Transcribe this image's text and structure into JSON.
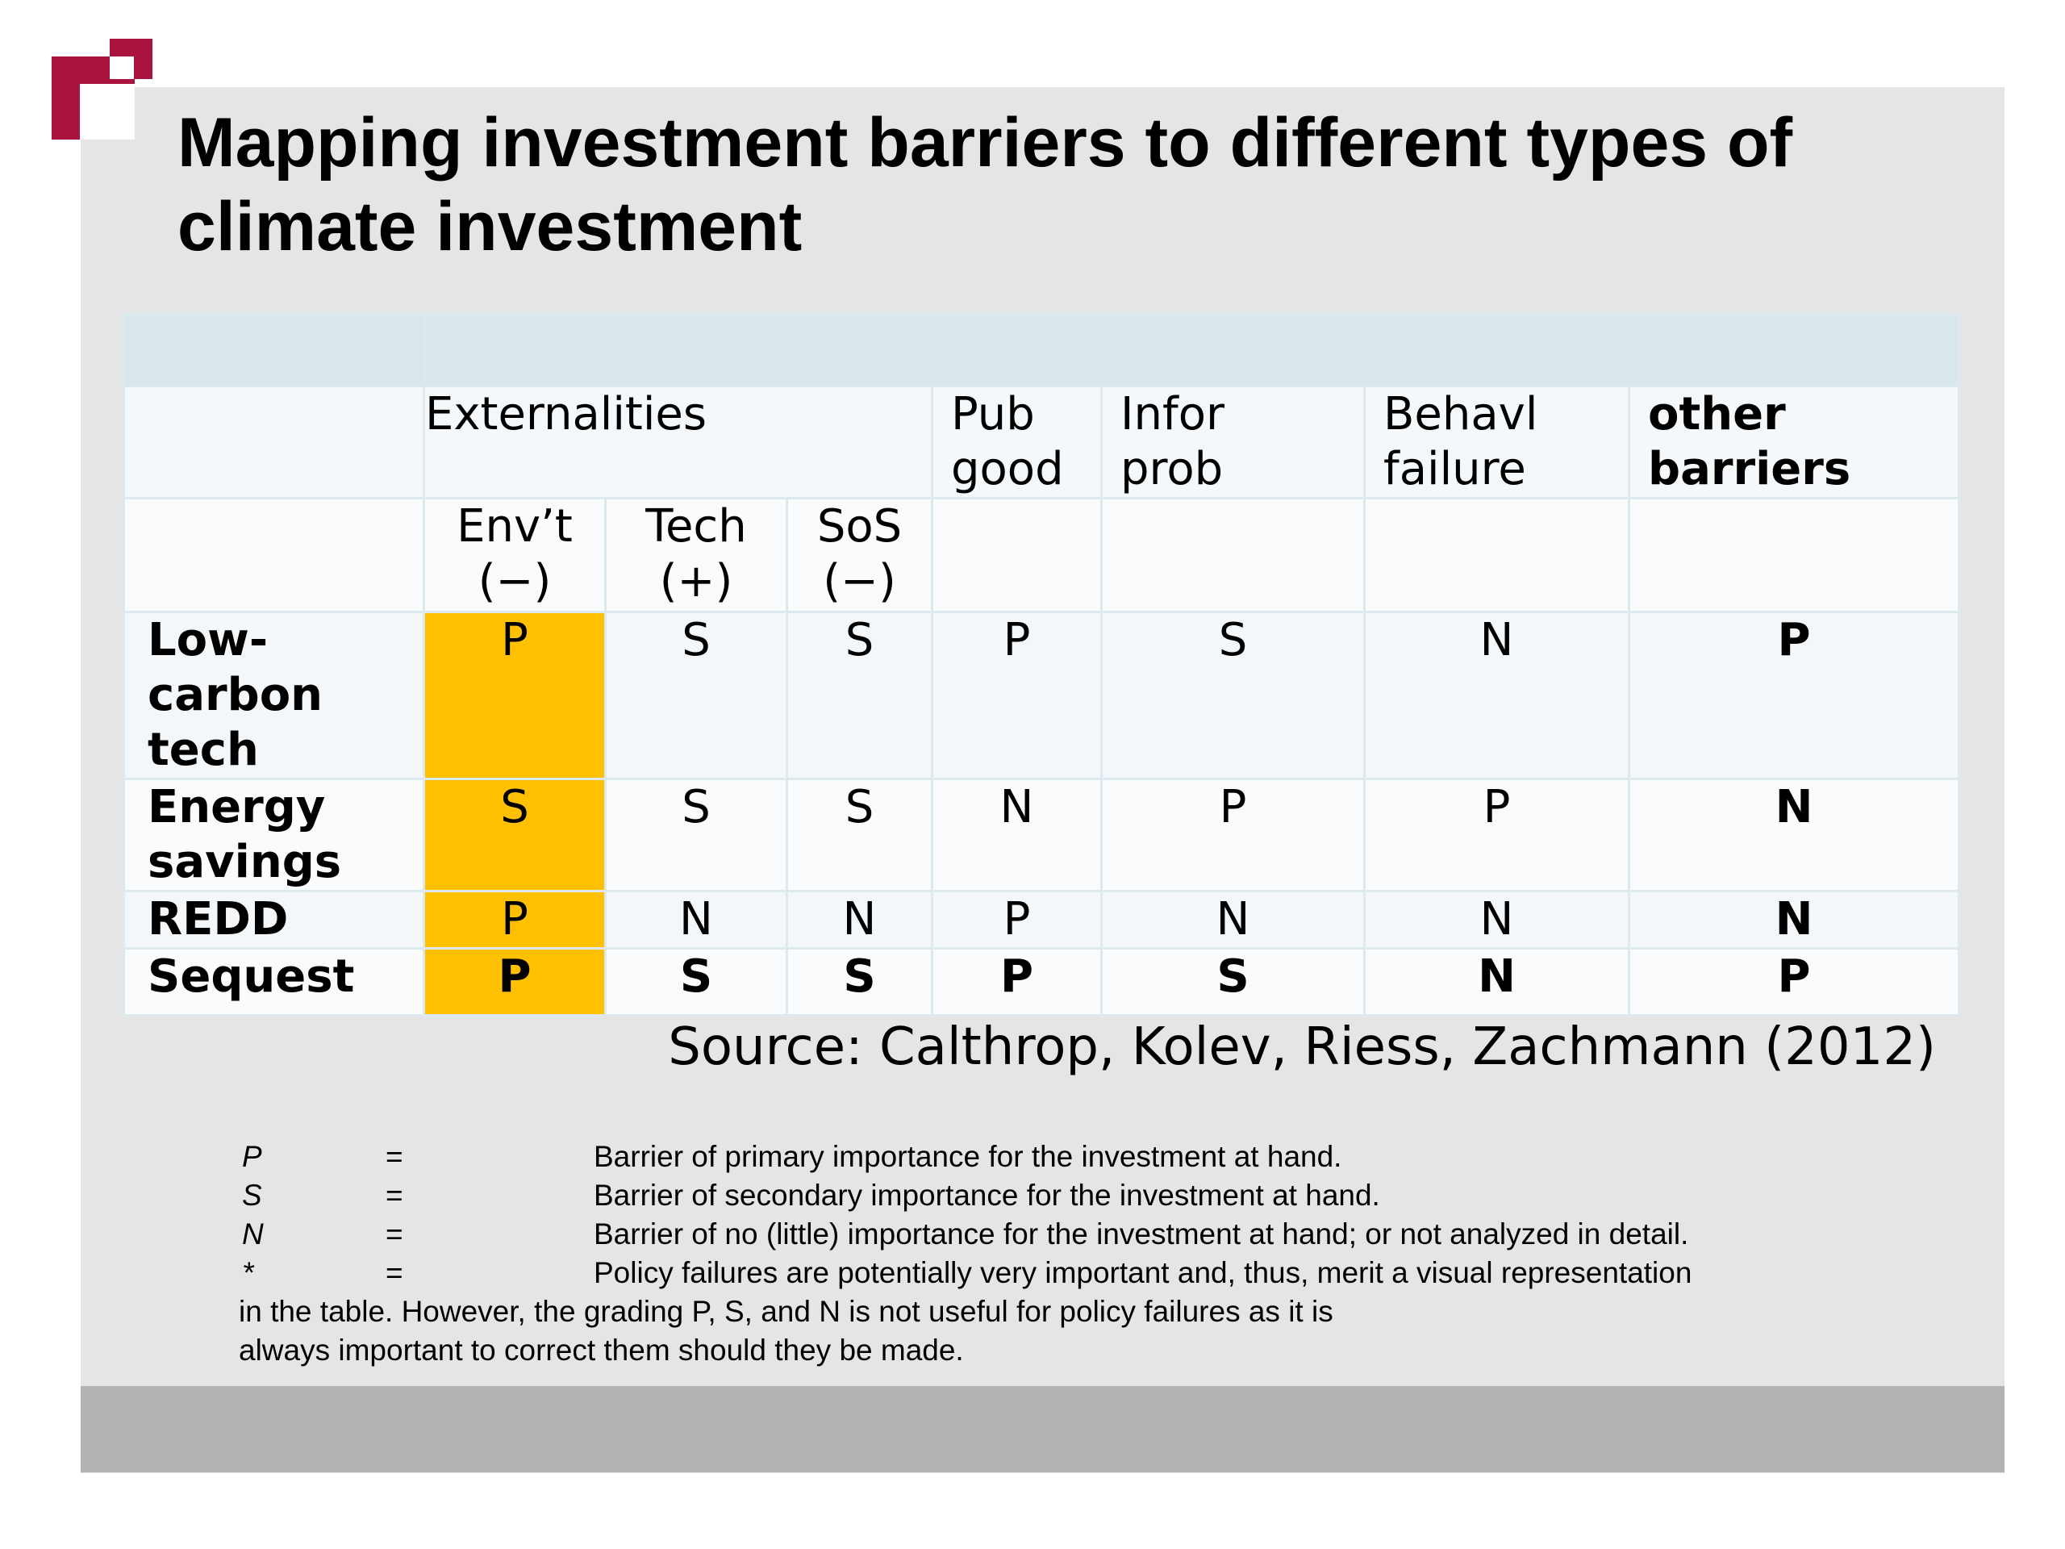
{
  "title": "Mapping investment barriers to different types of climate investment",
  "colors": {
    "highlight": "#fec000",
    "brand": "#a8143e",
    "panel": "#e5e5e5",
    "footer": "#b3b3b3"
  },
  "table": {
    "group_headers": {
      "externalities": "Externalities",
      "pub_good_1": "Pub",
      "pub_good_2": "good",
      "infor_prob_1": "Infor",
      "infor_prob_2": "prob",
      "behavl_failure_1": "Behavl",
      "behavl_failure_2": "failure",
      "other_barriers_1": "other",
      "other_barriers_2": "barriers"
    },
    "sub_headers": {
      "envt_1": "Env’t",
      "envt_2": "(−)",
      "tech_1": "Tech",
      "tech_2": "(+)",
      "sos_1": "SoS",
      "sos_2": "(−)"
    },
    "rows": [
      {
        "label_1": "Low-",
        "label_2": "carbon",
        "label_3": "tech",
        "values": [
          "P",
          "S",
          "S",
          "P",
          "S",
          "N",
          "P"
        ]
      },
      {
        "label_1": "Energy",
        "label_2": "savings",
        "values": [
          "S",
          "S",
          "S",
          "N",
          "P",
          "P",
          "N"
        ]
      },
      {
        "label_1": "REDD",
        "values": [
          "P",
          "N",
          "N",
          "P",
          "N",
          "N",
          "N"
        ]
      },
      {
        "label_1": "Sequest",
        "values": [
          "P",
          "S",
          "S",
          "P",
          "S",
          "N",
          "P"
        ]
      }
    ]
  },
  "source": "Source: Calthrop, Kolev, Riess, Zachmann (2012)",
  "legend": {
    "items": [
      {
        "symbol": "P",
        "equals": "=",
        "text": "Barrier of primary importance for the investment at hand."
      },
      {
        "symbol": "S",
        "equals": "=",
        "text": "Barrier of secondary importance for the investment at hand."
      },
      {
        "symbol": "N",
        "equals": "=",
        "text": "Barrier of no (little) importance for the investment at hand; or not analyzed in detail."
      },
      {
        "symbol": "*",
        "equals": "=",
        "text": "Policy failures are potentially very important and, thus, merit a visual representation"
      }
    ],
    "continuation_1": "in the table. However, the grading P, S, and N is not useful for policy failures as it is",
    "continuation_2": "always important to correct them should they be made."
  }
}
